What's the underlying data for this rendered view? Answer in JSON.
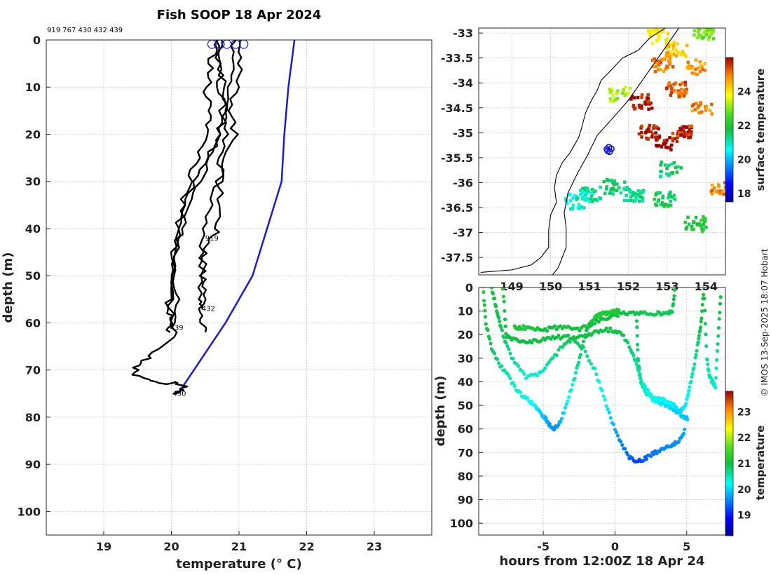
{
  "title": "Fish SOOP 18 Apr 2024",
  "profile_ids_text": "919 767 430 432 439",
  "credit": "© IMOS 13-Sep-2025 18:07 Hobart",
  "colors": {
    "profile": "#000000",
    "climatology": "#1a1adc",
    "sst_track": "#1010e0",
    "coast": "#000000"
  },
  "chart_data": [
    {
      "name": "profiles",
      "type": "line",
      "xlabel": "temperature (° C)",
      "ylabel": "depth (m)",
      "xlim": [
        18.15,
        23.85
      ],
      "ylim": [
        105,
        0
      ],
      "xticks": [
        19,
        20,
        21,
        22,
        23
      ],
      "yticks": [
        0,
        10,
        20,
        30,
        40,
        50,
        60,
        70,
        80,
        90,
        100
      ],
      "grid": true,
      "profile_labels": [
        {
          "id": "919",
          "temp": 20.5,
          "depth": 42.5
        },
        {
          "id": "432",
          "temp": 20.45,
          "depth": 57.5
        },
        {
          "id": "439",
          "temp": 19.98,
          "depth": 61.5
        },
        {
          "id": "430",
          "temp": 20.02,
          "depth": 75.5
        }
      ],
      "surface_markers": [
        20.6,
        20.72,
        20.82,
        20.95,
        21.07
      ],
      "climatology": {
        "temp": [
          21.82,
          21.73,
          21.67,
          21.63,
          21.2,
          20.8,
          20.1
        ],
        "depth": [
          0,
          10,
          20,
          30,
          50,
          60,
          75
        ]
      },
      "profiles": [
        {
          "id": "919",
          "temp": [
            20.75,
            20.73,
            20.77,
            20.8,
            20.82,
            20.74,
            20.7,
            20.72,
            20.68,
            20.55,
            20.47,
            20.45,
            20.5,
            20.45,
            20.48,
            20.5
          ],
          "depth": [
            0,
            5,
            10,
            15,
            20,
            25,
            30,
            35,
            40,
            43,
            46,
            50,
            53,
            57,
            60,
            62
          ]
        },
        {
          "id": "767",
          "temp": [
            20.72,
            20.7,
            20.73,
            20.75,
            20.73,
            20.55,
            20.45,
            20.3,
            20.15,
            20.05,
            19.98,
            19.95,
            19.97,
            20.0,
            19.98
          ],
          "depth": [
            0,
            5,
            10,
            15,
            20,
            25,
            30,
            35,
            40,
            45,
            50,
            55,
            58,
            60,
            62
          ]
        },
        {
          "id": "430",
          "temp": [
            20.68,
            20.6,
            20.55,
            20.5,
            20.62,
            20.5,
            20.4,
            20.25,
            20.15,
            20.1,
            20.05,
            20.02,
            20.08,
            20.1,
            19.95,
            19.7,
            19.5,
            19.45,
            19.7,
            19.9,
            20.05,
            20.2,
            20.1,
            20.02
          ],
          "depth": [
            0,
            4,
            8,
            12,
            16,
            20,
            25,
            30,
            35,
            40,
            45,
            50,
            55,
            60,
            64,
            67,
            69,
            71,
            72,
            73,
            72.5,
            73.5,
            74.5,
            75
          ]
        },
        {
          "id": "432",
          "temp": [
            21.07,
            21.0,
            20.95,
            20.9,
            20.93,
            20.82,
            20.7,
            20.58,
            20.48,
            20.47,
            20.45,
            20.42,
            20.45
          ],
          "depth": [
            0,
            5,
            10,
            15,
            20,
            25,
            30,
            35,
            40,
            45,
            50,
            55,
            57
          ]
        },
        {
          "id": "439",
          "temp": [
            20.95,
            20.9,
            20.85,
            20.8,
            20.7,
            20.55,
            20.35,
            20.2,
            20.08,
            20.05,
            20.0,
            19.98
          ],
          "depth": [
            0,
            5,
            10,
            15,
            20,
            25,
            30,
            35,
            40,
            48,
            55,
            61
          ]
        }
      ]
    },
    {
      "name": "map",
      "type": "heatmap",
      "xlabel": "",
      "ylabel": "",
      "xlim": [
        148.15,
        154.5
      ],
      "ylim": [
        -37.85,
        -32.9
      ],
      "xticks": [
        149,
        150,
        151,
        152,
        153,
        154
      ],
      "yticks": [
        -33,
        -33.5,
        -34,
        -34.5,
        -35,
        -35.5,
        -36,
        -36.5,
        -37,
        -37.5
      ],
      "grid": true,
      "colorbar": {
        "label": "surface temperature",
        "range": [
          17.5,
          26
        ],
        "ticks": [
          18,
          20,
          22,
          24
        ]
      },
      "sst_patches": [
        {
          "lon": 152.85,
          "lat": -33.6,
          "temp": 25.0
        },
        {
          "lon": 153.75,
          "lat": -33.65,
          "temp": 24.8
        },
        {
          "lon": 153.2,
          "lat": -33.3,
          "temp": 24.4
        },
        {
          "lon": 152.75,
          "lat": -33.05,
          "temp": 23.8
        },
        {
          "lon": 153.85,
          "lat": -34.5,
          "temp": 24.9
        },
        {
          "lon": 153.2,
          "lat": -34.1,
          "temp": 25.3
        },
        {
          "lon": 152.3,
          "lat": -34.35,
          "temp": 25.8
        },
        {
          "lon": 151.75,
          "lat": -34.2,
          "temp": 23.3
        },
        {
          "lon": 153.35,
          "lat": -34.95,
          "temp": 25.6
        },
        {
          "lon": 152.5,
          "lat": -34.95,
          "temp": 25.9
        },
        {
          "lon": 152.95,
          "lat": -35.2,
          "temp": 26.0
        },
        {
          "lon": 151.0,
          "lat": -36.2,
          "temp": 21.1
        },
        {
          "lon": 151.6,
          "lat": -36.05,
          "temp": 21.6
        },
        {
          "lon": 150.6,
          "lat": -36.35,
          "temp": 20.9
        },
        {
          "lon": 152.1,
          "lat": -36.2,
          "temp": 21.3
        },
        {
          "lon": 152.9,
          "lat": -36.3,
          "temp": 21.7
        },
        {
          "lon": 153.05,
          "lat": -35.7,
          "temp": 21.5
        },
        {
          "lon": 153.9,
          "lat": -32.95,
          "temp": 23.0
        },
        {
          "lon": 153.7,
          "lat": -36.8,
          "temp": 22.0
        },
        {
          "lon": 154.35,
          "lat": -36.1,
          "temp": 25.0
        }
      ],
      "track": [
        {
          "lon": 151.45,
          "lat": -35.33
        },
        {
          "lon": 151.5,
          "lat": -35.29
        },
        {
          "lon": 151.56,
          "lat": -35.32
        },
        {
          "lon": 151.52,
          "lat": -35.38
        },
        {
          "lon": 151.47,
          "lat": -35.36
        }
      ],
      "coastline": [
        {
          "lon": 152.95,
          "lat": -32.9
        },
        {
          "lon": 152.55,
          "lat": -33.1
        },
        {
          "lon": 152.25,
          "lat": -33.35
        },
        {
          "lon": 151.85,
          "lat": -33.5
        },
        {
          "lon": 151.55,
          "lat": -33.75
        },
        {
          "lon": 151.3,
          "lat": -33.95
        },
        {
          "lon": 151.2,
          "lat": -34.15
        },
        {
          "lon": 151.05,
          "lat": -34.35
        },
        {
          "lon": 150.9,
          "lat": -34.6
        },
        {
          "lon": 150.8,
          "lat": -34.9
        },
        {
          "lon": 150.72,
          "lat": -35.1
        },
        {
          "lon": 150.5,
          "lat": -35.4
        },
        {
          "lon": 150.3,
          "lat": -35.6
        },
        {
          "lon": 150.15,
          "lat": -35.85
        },
        {
          "lon": 150.1,
          "lat": -36.1
        },
        {
          "lon": 150.15,
          "lat": -36.4
        },
        {
          "lon": 150.0,
          "lat": -36.65
        },
        {
          "lon": 149.95,
          "lat": -36.95
        },
        {
          "lon": 149.95,
          "lat": -37.3
        },
        {
          "lon": 149.75,
          "lat": -37.5
        },
        {
          "lon": 149.5,
          "lat": -37.65
        },
        {
          "lon": 149.0,
          "lat": -37.75
        },
        {
          "lon": 148.2,
          "lat": -37.8
        }
      ],
      "shelf_edge": [
        {
          "lon": 153.3,
          "lat": -32.9
        },
        {
          "lon": 152.9,
          "lat": -33.35
        },
        {
          "lon": 152.45,
          "lat": -33.85
        },
        {
          "lon": 152.0,
          "lat": -34.35
        },
        {
          "lon": 151.55,
          "lat": -34.75
        },
        {
          "lon": 151.2,
          "lat": -35.05
        },
        {
          "lon": 150.95,
          "lat": -35.45
        },
        {
          "lon": 150.7,
          "lat": -35.8
        },
        {
          "lon": 150.45,
          "lat": -36.2
        },
        {
          "lon": 150.35,
          "lat": -36.6
        },
        {
          "lon": 150.4,
          "lat": -36.9
        },
        {
          "lon": 150.4,
          "lat": -37.3
        },
        {
          "lon": 150.2,
          "lat": -37.7
        },
        {
          "lon": 150.05,
          "lat": -37.85
        }
      ]
    },
    {
      "name": "section",
      "type": "scatter",
      "xlabel": "hours from 12:00Z 18 Apr 24",
      "ylabel": "depth (m)",
      "xlim": [
        -9.5,
        7.7
      ],
      "ylim": [
        105,
        0
      ],
      "xticks": [
        -5,
        0,
        5
      ],
      "yticks": [
        0,
        10,
        20,
        30,
        40,
        50,
        60,
        70,
        80,
        90,
        100
      ],
      "grid": true,
      "colorbar": {
        "label": "temperature",
        "range": [
          18.2,
          23.8
        ],
        "ticks": [
          19,
          20,
          21,
          22,
          23
        ]
      },
      "casts": [
        {
          "t": [
            -9.2,
            -9.0,
            -8.6,
            -8.0,
            -7.4,
            -6.8,
            -6.2,
            -5.6,
            -5.2,
            -4.8,
            -4.5,
            -4.2,
            -3.8,
            -3.3,
            -2.8,
            -2.4,
            -2.0,
            -1.6,
            -1.2,
            -0.8,
            -0.4,
            0.0,
            0.3
          ],
          "depth": [
            0,
            15,
            26,
            33,
            38,
            44,
            47,
            50,
            53,
            56,
            59,
            60,
            57,
            48,
            38,
            28,
            18,
            14,
            12,
            11,
            11,
            10,
            10
          ],
          "temp": [
            21.2,
            21.0,
            20.9,
            20.7,
            20.5,
            20.4,
            20.3,
            20.2,
            20.0,
            19.8,
            19.7,
            19.6,
            19.8,
            20.2,
            20.5,
            20.8,
            21.0,
            21.1,
            21.2,
            21.2,
            21.2,
            21.2,
            21.2
          ]
        },
        {
          "t": [
            -8.6,
            -8.3,
            -8.0,
            -7.6,
            -7.0,
            -6.2,
            -5.4,
            -4.6,
            -3.8,
            -3.0,
            -2.2,
            -1.4,
            -0.8,
            -0.2,
            0.4,
            1.0,
            1.6,
            2.2,
            2.8,
            3.4,
            3.8,
            4.2,
            4.6,
            4.9
          ],
          "depth": [
            0,
            8,
            16,
            24,
            32,
            38,
            37,
            32,
            26,
            22,
            26,
            35,
            46,
            57,
            66,
            72,
            74,
            72,
            70,
            68,
            67,
            66,
            64,
            60
          ],
          "temp": [
            21.1,
            21.0,
            20.9,
            20.8,
            20.6,
            20.4,
            20.4,
            20.6,
            20.8,
            20.9,
            20.8,
            20.5,
            20.2,
            19.9,
            19.6,
            19.4,
            19.2,
            19.4,
            19.5,
            19.6,
            19.6,
            19.6,
            19.7,
            19.8
          ]
        },
        {
          "t": [
            -7.8,
            -7.6,
            -7.2,
            -6.5,
            -5.8,
            -5.0,
            -4.2,
            -3.4,
            -2.6,
            -1.8,
            -1.0,
            -0.2,
            0.5,
            1.1,
            1.5,
            1.9,
            2.3,
            2.7,
            3.2,
            3.6,
            4.0,
            4.4,
            4.8,
            5.1
          ],
          "depth": [
            0,
            20,
            22,
            23,
            23,
            22,
            21,
            21,
            21,
            20,
            18,
            18,
            20,
            26,
            33,
            41,
            44,
            48,
            49,
            50,
            51,
            53,
            55,
            56
          ],
          "temp": [
            21.2,
            21.0,
            21.0,
            21.0,
            21.0,
            21.0,
            21.0,
            21.0,
            21.0,
            21.0,
            21.0,
            21.0,
            20.9,
            20.8,
            20.6,
            20.4,
            20.3,
            20.2,
            20.1,
            20.0,
            20.0,
            19.9,
            19.9,
            19.9
          ]
        },
        {
          "t": [
            -7.0,
            -6.5,
            -5.8,
            -5.0,
            -4.2,
            -3.4,
            -2.6,
            -1.8,
            -1.0,
            -0.2,
            0.6,
            1.4,
            2.2,
            3.0,
            3.6,
            4.0,
            4.2
          ],
          "depth": [
            17,
            17,
            17,
            18,
            17,
            17,
            18,
            16,
            14,
            12,
            11,
            11,
            11,
            11,
            11,
            10,
            0
          ],
          "temp": [
            21.1,
            21.1,
            21.1,
            21.0,
            21.0,
            21.1,
            21.0,
            21.0,
            21.0,
            21.0,
            21.0,
            21.0,
            20.9,
            20.9,
            20.9,
            20.9,
            21.0
          ]
        },
        {
          "t": [
            1.5,
            1.6,
            1.8,
            2.2,
            2.8,
            3.3,
            3.7,
            4.1,
            4.5,
            4.9,
            5.2,
            5.5,
            5.8,
            6.0,
            6.2,
            6.4,
            6.6,
            6.8,
            7.0,
            7.2,
            7.4
          ],
          "depth": [
            11,
            30,
            40,
            45,
            47,
            47,
            49,
            50,
            53,
            50,
            42,
            34,
            23,
            15,
            0,
            30,
            38,
            40,
            42,
            20,
            0
          ],
          "temp": [
            20.9,
            20.8,
            20.6,
            20.4,
            20.3,
            20.3,
            20.2,
            20.1,
            20.0,
            20.1,
            20.4,
            20.6,
            20.8,
            21.0,
            21.1,
            20.6,
            20.5,
            20.5,
            20.4,
            20.8,
            21.1
          ]
        }
      ]
    }
  ]
}
